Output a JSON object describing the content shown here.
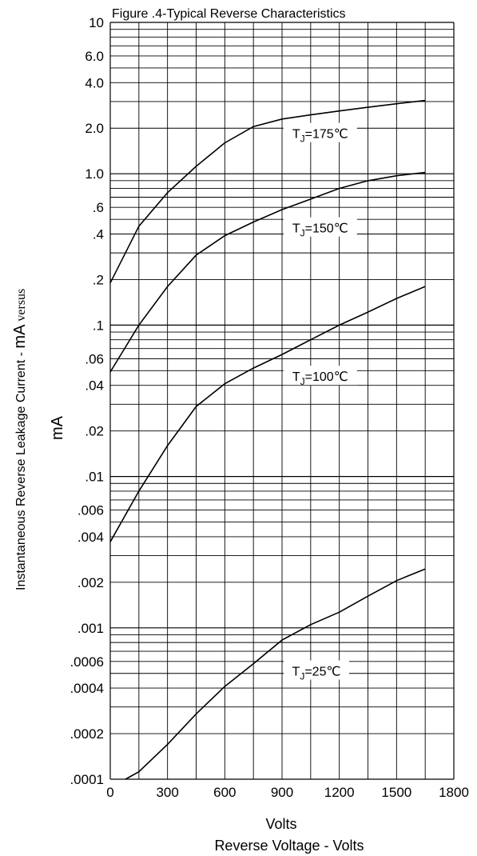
{
  "chart_data": {
    "type": "line",
    "title": "Figure .4-Typical Reverse Characteristics",
    "xlabel_line1": "Volts",
    "xlabel_line2": "Reverse Voltage - Volts",
    "ylabel_main": "Instantaneous Reverse Leakage Current - ",
    "ylabel_unit": "mA",
    "ylabel_versus": "versus",
    "ylabel_unit2": "mA",
    "y_scale": "log",
    "xlim": [
      0,
      1800
    ],
    "ylim": [
      0.0001,
      10
    ],
    "grid": true,
    "x_ticks": [
      0,
      300,
      600,
      900,
      1200,
      1500,
      1800
    ],
    "x_tick_labels": [
      "0",
      "300",
      "600",
      "900",
      "1200",
      "1500",
      "1800"
    ],
    "y_ticks": [
      10,
      6,
      4,
      2,
      1,
      0.6,
      0.4,
      0.2,
      0.1,
      0.06,
      0.04,
      0.02,
      0.01,
      0.006,
      0.004,
      0.002,
      0.001,
      0.0006,
      0.0004,
      0.0002,
      0.0001
    ],
    "y_tick_labels": [
      "10",
      "6.0",
      "4.0",
      "2.0",
      "1.0",
      ".6",
      ".4",
      ".2",
      ".1",
      ".06",
      ".04",
      ".02",
      ".01",
      ".006",
      ".004",
      ".002",
      ".001",
      ".0006",
      ".0004",
      ".0002",
      ".0001"
    ],
    "series": [
      {
        "name": "175",
        "label_main": "T",
        "label_sub": "J",
        "label_rest": "=175℃",
        "label_at": [
          1100,
          1.85
        ],
        "x": [
          0,
          150,
          300,
          450,
          600,
          750,
          900,
          1050,
          1200,
          1350,
          1500,
          1650
        ],
        "values": [
          0.19,
          0.45,
          0.75,
          1.12,
          1.6,
          2.05,
          2.3,
          2.45,
          2.6,
          2.75,
          2.9,
          3.05
        ]
      },
      {
        "name": "150",
        "label_main": "T",
        "label_sub": "J",
        "label_rest": "=150℃",
        "label_at": [
          1100,
          0.44
        ],
        "x": [
          0,
          150,
          300,
          450,
          600,
          750,
          900,
          1050,
          1200,
          1350,
          1500,
          1650
        ],
        "values": [
          0.049,
          0.1,
          0.18,
          0.29,
          0.39,
          0.48,
          0.58,
          0.68,
          0.8,
          0.9,
          0.97,
          1.02
        ]
      },
      {
        "name": "100",
        "label_main": "T",
        "label_sub": "J",
        "label_rest": "=100℃",
        "label_at": [
          1100,
          0.046
        ],
        "x": [
          0,
          150,
          300,
          450,
          600,
          750,
          900,
          1050,
          1200,
          1350,
          1500,
          1650
        ],
        "values": [
          0.0037,
          0.008,
          0.016,
          0.029,
          0.041,
          0.052,
          0.064,
          0.08,
          0.1,
          0.122,
          0.15,
          0.18
        ]
      },
      {
        "name": "25",
        "label_main": "T",
        "label_sub": "J",
        "label_rest": "=25℃",
        "label_at": [
          1080,
          0.00052
        ],
        "x": [
          80,
          150,
          300,
          450,
          600,
          750,
          900,
          1050,
          1200,
          1350,
          1500,
          1650
        ],
        "values": [
          0.0001,
          0.000112,
          0.00017,
          0.00027,
          0.00041,
          0.00058,
          0.00083,
          0.00105,
          0.00127,
          0.00162,
          0.00205,
          0.00245
        ]
      }
    ]
  }
}
